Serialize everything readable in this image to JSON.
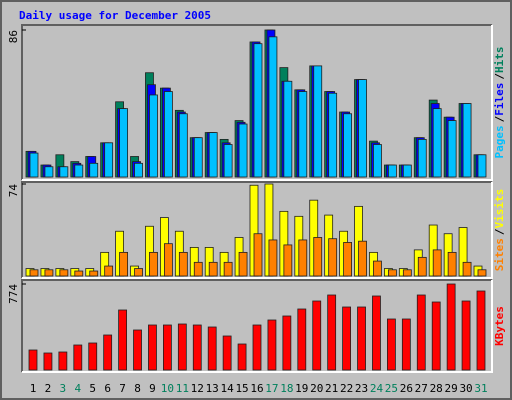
{
  "chart_data": [
    {
      "type": "bar",
      "title": "Daily usage for December 2005",
      "ylim": [
        0,
        86
      ],
      "yticks": [
        86
      ],
      "separator": "/",
      "series": [
        {
          "name": "Hits",
          "color": "#00805c",
          "values": [
            15,
            7,
            13,
            9,
            12,
            20,
            44,
            12,
            61,
            52,
            39,
            23,
            26,
            22,
            33,
            79,
            86,
            64,
            51,
            65,
            50,
            38,
            57,
            21,
            7,
            7,
            23,
            45,
            35,
            43,
            13
          ]
        },
        {
          "name": "Files",
          "color": "#0000ff",
          "values": [
            15,
            7,
            6,
            8,
            12,
            20,
            40,
            9,
            54,
            52,
            38,
            23,
            26,
            20,
            32,
            79,
            86,
            56,
            51,
            65,
            50,
            38,
            57,
            20,
            7,
            7,
            23,
            43,
            35,
            43,
            13
          ]
        },
        {
          "name": "Pages",
          "color": "#00c0ff",
          "values": [
            14,
            6,
            6,
            7,
            8,
            20,
            40,
            8,
            48,
            50,
            37,
            23,
            26,
            19,
            31,
            78,
            82,
            56,
            50,
            65,
            49,
            37,
            57,
            19,
            7,
            7,
            22,
            40,
            33,
            43,
            13
          ]
        }
      ]
    },
    {
      "type": "bar",
      "ylim": [
        0,
        74
      ],
      "yticks": [
        74
      ],
      "separator": "/",
      "series": [
        {
          "name": "Visits",
          "color": "#ffff00",
          "values": [
            6,
            6,
            6,
            6,
            6,
            19,
            36,
            8,
            40,
            47,
            36,
            23,
            23,
            19,
            31,
            73,
            74,
            52,
            48,
            61,
            49,
            36,
            56,
            19,
            6,
            6,
            21,
            41,
            34,
            39,
            8
          ]
        },
        {
          "name": "Sites",
          "color": "#ff8000",
          "values": [
            5,
            5,
            5,
            4,
            4,
            8,
            19,
            6,
            19,
            26,
            19,
            11,
            11,
            11,
            19,
            34,
            29,
            25,
            29,
            31,
            30,
            27,
            28,
            12,
            5,
            5,
            15,
            21,
            19,
            11,
            5
          ]
        }
      ]
    },
    {
      "type": "bar",
      "ylim": [
        0,
        774
      ],
      "yticks": [
        774
      ],
      "categories": [
        1,
        2,
        3,
        4,
        5,
        6,
        7,
        8,
        9,
        10,
        11,
        12,
        13,
        14,
        15,
        16,
        17,
        18,
        19,
        20,
        21,
        22,
        23,
        24,
        25,
        26,
        27,
        28,
        29,
        30,
        31
      ],
      "category_colors": [
        "#000000",
        "#000000",
        "#00805c",
        "#00805c",
        "#000000",
        "#000000",
        "#000000",
        "#000000",
        "#000000",
        "#00805c",
        "#00805c",
        "#000000",
        "#000000",
        "#000000",
        "#000000",
        "#000000",
        "#00805c",
        "#00805c",
        "#000000",
        "#000000",
        "#000000",
        "#000000",
        "#000000",
        "#00805c",
        "#00805c",
        "#000000",
        "#000000",
        "#000000",
        "#000000",
        "#000000",
        "#00805c"
      ],
      "series": [
        {
          "name": "KBytes",
          "color": "#ff0000",
          "values": [
            180,
            153,
            162,
            225,
            243,
            315,
            540,
            360,
            405,
            405,
            414,
            405,
            387,
            306,
            234,
            405,
            450,
            486,
            549,
            621,
            675,
            567,
            567,
            666,
            459,
            459,
            675,
            612,
            774,
            621,
            711
          ]
        }
      ]
    }
  ]
}
